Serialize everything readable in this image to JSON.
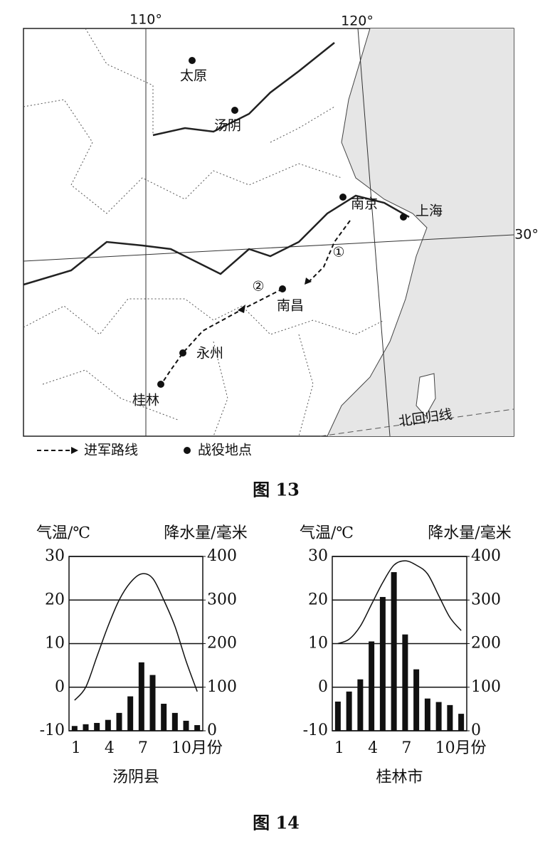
{
  "map": {
    "meridians": [
      "110°",
      "120°"
    ],
    "parallel": "30°",
    "cities": [
      "太原",
      "汤阴",
      "南京",
      "上海",
      "南昌",
      "永州",
      "桂林"
    ],
    "routes": [
      "①",
      "②"
    ],
    "tropic": "北回归线",
    "legend": [
      "进军路线",
      "战役地点"
    ],
    "caption": "图 13"
  },
  "figure14_caption": "图 14",
  "chart_data": [
    {
      "type": "combo",
      "title": "汤阴县",
      "y_label": "气温/℃",
      "y2_label": "降水量/毫米",
      "categories": [
        "1",
        null,
        null,
        "4",
        null,
        null,
        "7",
        null,
        null,
        "10月份",
        null,
        null
      ],
      "series": [
        {
          "name": "气温",
          "type": "line",
          "color": "#111",
          "values": [
            -3,
            0,
            7,
            14,
            20,
            24,
            26,
            25,
            20,
            14,
            6,
            -1
          ]
        },
        {
          "name": "降水量",
          "type": "bar",
          "axis": "y2",
          "color": "#111",
          "values": [
            11,
            15,
            18,
            25,
            41,
            79,
            157,
            128,
            62,
            41,
            23,
            13
          ]
        }
      ],
      "ylim": [
        -10,
        30
      ],
      "yticks": [
        -10,
        0,
        10,
        20,
        30
      ],
      "y2lim": [
        0,
        400
      ],
      "y2ticks": [
        0,
        100,
        200,
        300,
        400
      ],
      "grid": true
    },
    {
      "type": "combo",
      "title": "桂林市",
      "y_label": "气温/℃",
      "y2_label": "降水量/毫米",
      "categories": [
        "1",
        null,
        null,
        "4",
        null,
        null,
        "7",
        null,
        null,
        "10月份",
        null,
        null
      ],
      "series": [
        {
          "name": "气温",
          "type": "line",
          "color": "#111",
          "values": [
            10,
            11,
            14,
            19,
            24,
            28,
            29,
            28,
            26,
            21,
            16,
            13
          ]
        },
        {
          "name": "降水量",
          "type": "bar",
          "axis": "y2",
          "color": "#111",
          "values": [
            67,
            90,
            118,
            205,
            307,
            364,
            221,
            141,
            74,
            66,
            59,
            39
          ]
        }
      ],
      "ylim": [
        -10,
        30
      ],
      "yticks": [
        -10,
        0,
        10,
        20,
        30
      ],
      "y2lim": [
        0,
        400
      ],
      "y2ticks": [
        0,
        100,
        200,
        300,
        400
      ],
      "grid": true
    }
  ]
}
